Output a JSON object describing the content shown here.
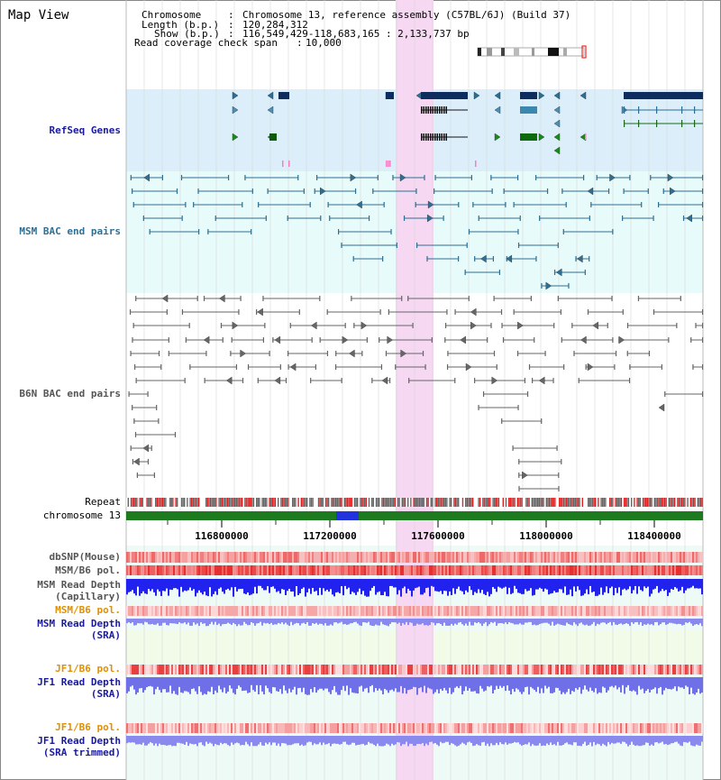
{
  "page": {
    "title": "Map View"
  },
  "info": {
    "chromosome_key": "Chromosome",
    "chromosome_val": "Chromosome 13, reference assembly (C57BL/6J) (Build 37)",
    "length_key": "Length (b.p.)",
    "length_val": "120,284,312",
    "show_key": "Show (b.p.)",
    "show_val": "116,549,429-118,683,165 : 2,133,737 bp",
    "span_key": "Read coverage check span",
    "span_val": "10,000"
  },
  "tracks": {
    "refseq": "RefSeq Genes",
    "msm_bac": "MSM BAC end pairs",
    "b6n_bac": "B6N BAC end pairs",
    "repeat": "Repeat",
    "chromosome": "chromosome 13",
    "dbsnp": "dbSNP(Mouse)",
    "msm_b6_pol": "MSM/B6 pol.",
    "msm_depth_cap_1": "MSM Read Depth",
    "msm_depth_cap_2": "(Capillary)",
    "msm_b6_pol_sra": "MSM/B6 pol.",
    "msm_depth_sra_1": "MSM Read Depth",
    "msm_depth_sra_2": "(SRA)",
    "jf1_b6_pol": "JF1/B6 pol.",
    "jf1_depth_sra_1": "JF1 Read Depth",
    "jf1_depth_sra_2": "(SRA)",
    "jf1_b6_pol_2": "JF1/B6 pol.",
    "jf1_depth_trim_1": "JF1 Read Depth",
    "jf1_depth_trim_2": "(SRA trimmed)"
  },
  "axis": {
    "ticks": [
      "116800000",
      "117200000",
      "117600000",
      "118000000",
      "118400000"
    ]
  },
  "colors": {
    "refseq_bg": "#dbeefa",
    "bac_bg": "#e8fbfb",
    "highlight": "#f6d8f3",
    "msm_bac": "#2e6f93",
    "b6n_bac": "#666666",
    "chrom": "#1e7a1e",
    "pol_red": "#ee3333",
    "depth_blue": "#2222ee",
    "depth_light": "#8888ee",
    "orange_label": "#e09000",
    "navy_label": "#1a1aa0"
  }
}
